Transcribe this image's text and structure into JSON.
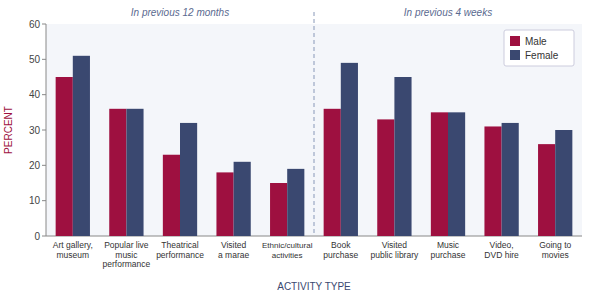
{
  "chart_data": {
    "type": "bar",
    "categories": [
      "Art gallery,\nmuseum",
      "Popular live\nmusic\nperformance",
      "Theatrical\nperformance",
      "Visited\na marae",
      "Ethnic/cultural\nactivities",
      "Book\npurchase",
      "Visited\npublic library",
      "Music\npurchase",
      "Video,\nDVD hire",
      "Going to\nmovies"
    ],
    "series": [
      {
        "name": "Male",
        "color": "#9e1040",
        "values": [
          45,
          36,
          23,
          18,
          15,
          36,
          33,
          35,
          31,
          26
        ]
      },
      {
        "name": "Female",
        "color": "#3a4870",
        "values": [
          51,
          36,
          32,
          21,
          19,
          49,
          45,
          35,
          32,
          30
        ]
      }
    ],
    "xlabel": "ACTIVITY TYPE",
    "ylabel": "PERCENT",
    "annotations": [
      "In previous 12 months",
      "In previous 4 weeks"
    ],
    "ylim": [
      0,
      60
    ],
    "yticks": [
      0,
      10,
      20,
      30,
      40,
      50,
      60
    ],
    "grid": false,
    "legend": "upper right"
  }
}
